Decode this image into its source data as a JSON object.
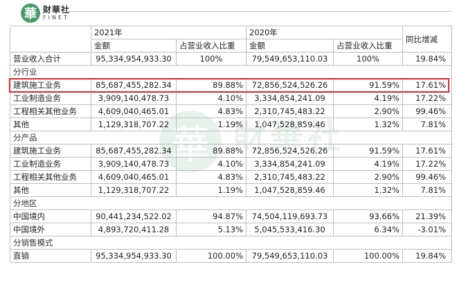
{
  "brand": {
    "logo_char": "華",
    "name_cn": "財華社",
    "name_en": "FINET"
  },
  "watermark": {
    "char": "華",
    "cn": "財華社",
    "en": "FINET"
  },
  "header": {
    "year1": "2021年",
    "year2": "2020年",
    "yoy": "同比增减",
    "amount": "金额",
    "share": "占营业收入比重"
  },
  "total": {
    "label": "营业收入合计",
    "a21": "95,334,954,933.30",
    "p21": "100%",
    "a20": "79,549,653,110.03",
    "p20": "100%",
    "yoy": "19.84%"
  },
  "sections": {
    "industry": "分行业",
    "product": "分产品",
    "region": "分地区",
    "sales": "分销售模式"
  },
  "industry_rows": [
    {
      "label": "建筑施工业务",
      "a21": "85,687,455,282.34",
      "p21": "89.88%",
      "a20": "72,856,524,526.26",
      "p20": "91.59%",
      "yoy": "17.61%"
    },
    {
      "label": "工业制造业务",
      "a21": "3,909,140,478.73",
      "p21": "4.10%",
      "a20": "3,334,854,241.09",
      "p20": "4.19%",
      "yoy": "17.22%"
    },
    {
      "label": "工程相关其他业务",
      "a21": "4,609,040,465.01",
      "p21": "4.83%",
      "a20": "2,310,745,483.22",
      "p20": "2.90%",
      "yoy": "99.46%"
    },
    {
      "label": "其他",
      "a21": "1,129,318,707.22",
      "p21": "1.19%",
      "a20": "1,047,528,859.46",
      "p20": "1.32%",
      "yoy": "7.81%"
    }
  ],
  "product_rows": [
    {
      "label": "建筑施工业务",
      "a21": "85,687,455,282.34",
      "p21": "89.88%",
      "a20": "72,856,524,526.26",
      "p20": "91.59%",
      "yoy": "17.61%"
    },
    {
      "label": "工业制造业务",
      "a21": "3,909,140,478.73",
      "p21": "4.10%",
      "a20": "3,334,854,241.09",
      "p20": "4.19%",
      "yoy": "17.22%"
    },
    {
      "label": "工程相关其他业务",
      "a21": "4,609,040,465.01",
      "p21": "4.83%",
      "a20": "2,310,745,483.22",
      "p20": "2.90%",
      "yoy": "99.46%"
    },
    {
      "label": "其他",
      "a21": "1,129,318,707.22",
      "p21": "1.19%",
      "a20": "1,047,528,859.46",
      "p20": "1.32%",
      "yoy": "7.81%"
    }
  ],
  "region_rows": [
    {
      "label": "中国境内",
      "a21": "90,441,234,522.02",
      "p21": "94.87%",
      "a20": "74,504,119,693.73",
      "p20": "93.66%",
      "yoy": "21.39%"
    },
    {
      "label": "中国境外",
      "a21": "4,893,720,411.28",
      "p21": "5.13%",
      "a20": "5,045,533,416.30",
      "p20": "6.34%",
      "yoy": "-3.01%"
    }
  ],
  "sales_rows": [
    {
      "label": "直销",
      "a21": "95,334,954,933.30",
      "p21": "100.00%",
      "a20": "79,549,653,110.03",
      "p20": "100.00%",
      "yoy": "19.84%"
    }
  ],
  "colors": {
    "highlight": "#d9252b",
    "brand": "#4b9a6a",
    "border": "#bdbdbd"
  }
}
